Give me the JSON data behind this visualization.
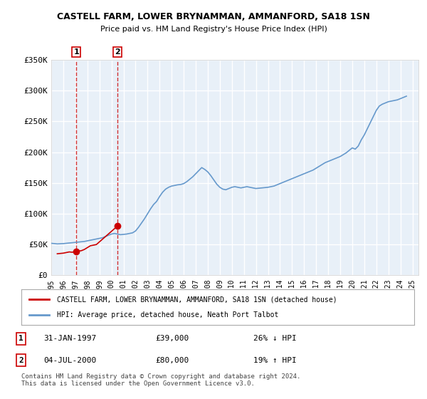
{
  "title": "CASTELL FARM, LOWER BRYNAMMAN, AMMANFORD, SA18 1SN",
  "subtitle": "Price paid vs. HM Land Registry's House Price Index (HPI)",
  "legend_line1": "CASTELL FARM, LOWER BRYNAMMAN, AMMANFORD, SA18 1SN (detached house)",
  "legend_line2": "HPI: Average price, detached house, Neath Port Talbot",
  "transactions": [
    {
      "num": 1,
      "date": "31-JAN-1997",
      "price": 39000,
      "hpi_rel": "26% ↓ HPI",
      "year": 1997.08
    },
    {
      "num": 2,
      "date": "04-JUL-2000",
      "price": 80000,
      "hpi_rel": "19% ↑ HPI",
      "year": 2000.5
    }
  ],
  "footer": "Contains HM Land Registry data © Crown copyright and database right 2024.\nThis data is licensed under the Open Government Licence v3.0.",
  "ylim": [
    0,
    350000
  ],
  "yticks": [
    0,
    50000,
    100000,
    150000,
    200000,
    250000,
    300000,
    350000
  ],
  "ytick_labels": [
    "£0",
    "£50K",
    "£100K",
    "£150K",
    "£200K",
    "£250K",
    "£300K",
    "£350K"
  ],
  "xlim_start": 1995.0,
  "xlim_end": 2025.5,
  "red_color": "#cc0000",
  "blue_color": "#6699cc",
  "background_color": "#e8f0f8",
  "grid_color": "#ffffff",
  "hpi_data": {
    "years": [
      1995.0,
      1995.25,
      1995.5,
      1995.75,
      1996.0,
      1996.25,
      1996.5,
      1996.75,
      1997.0,
      1997.25,
      1997.5,
      1997.75,
      1998.0,
      1998.25,
      1998.5,
      1998.75,
      1999.0,
      1999.25,
      1999.5,
      1999.75,
      2000.0,
      2000.25,
      2000.5,
      2000.75,
      2001.0,
      2001.25,
      2001.5,
      2001.75,
      2002.0,
      2002.25,
      2002.5,
      2002.75,
      2003.0,
      2003.25,
      2003.5,
      2003.75,
      2004.0,
      2004.25,
      2004.5,
      2004.75,
      2005.0,
      2005.25,
      2005.5,
      2005.75,
      2006.0,
      2006.25,
      2006.5,
      2006.75,
      2007.0,
      2007.25,
      2007.5,
      2007.75,
      2008.0,
      2008.25,
      2008.5,
      2008.75,
      2009.0,
      2009.25,
      2009.5,
      2009.75,
      2010.0,
      2010.25,
      2010.5,
      2010.75,
      2011.0,
      2011.25,
      2011.5,
      2011.75,
      2012.0,
      2012.25,
      2012.5,
      2012.75,
      2013.0,
      2013.25,
      2013.5,
      2013.75,
      2014.0,
      2014.25,
      2014.5,
      2014.75,
      2015.0,
      2015.25,
      2015.5,
      2015.75,
      2016.0,
      2016.25,
      2016.5,
      2016.75,
      2017.0,
      2017.25,
      2017.5,
      2017.75,
      2018.0,
      2018.25,
      2018.5,
      2018.75,
      2019.0,
      2019.25,
      2019.5,
      2019.75,
      2020.0,
      2020.25,
      2020.5,
      2020.75,
      2021.0,
      2021.25,
      2021.5,
      2021.75,
      2022.0,
      2022.25,
      2022.5,
      2022.75,
      2023.0,
      2023.25,
      2023.5,
      2023.75,
      2024.0,
      2024.25,
      2024.5
    ],
    "values": [
      52000,
      51500,
      51000,
      51200,
      51500,
      52000,
      52500,
      53000,
      53500,
      54000,
      54500,
      55000,
      56000,
      57000,
      58000,
      59000,
      60000,
      61000,
      63000,
      65000,
      67000,
      68000,
      67000,
      66000,
      66500,
      67000,
      68000,
      69000,
      72000,
      78000,
      85000,
      92000,
      100000,
      108000,
      115000,
      120000,
      128000,
      135000,
      140000,
      143000,
      145000,
      146000,
      147000,
      147500,
      149000,
      152000,
      156000,
      160000,
      165000,
      170000,
      175000,
      172000,
      168000,
      162000,
      155000,
      148000,
      143000,
      140000,
      139000,
      141000,
      143000,
      144000,
      143000,
      142000,
      143000,
      144000,
      143000,
      142000,
      141000,
      141500,
      142000,
      142500,
      143000,
      144000,
      145000,
      147000,
      149000,
      151000,
      153000,
      155000,
      157000,
      159000,
      161000,
      163000,
      165000,
      167000,
      169000,
      171000,
      174000,
      177000,
      180000,
      183000,
      185000,
      187000,
      189000,
      191000,
      193000,
      196000,
      199000,
      203000,
      207000,
      205000,
      210000,
      220000,
      228000,
      238000,
      248000,
      258000,
      268000,
      275000,
      278000,
      280000,
      282000,
      283000,
      284000,
      285000,
      287000,
      289000,
      291000
    ]
  },
  "price_data": {
    "years": [
      1995.5,
      1996.0,
      1996.25,
      1996.5,
      1996.75,
      1997.08,
      1997.5,
      1997.75,
      1998.0,
      1998.25,
      1998.75,
      2000.5
    ],
    "values": [
      35000,
      36000,
      37000,
      38000,
      37500,
      39000,
      40000,
      42000,
      45000,
      48000,
      50000,
      80000
    ]
  }
}
